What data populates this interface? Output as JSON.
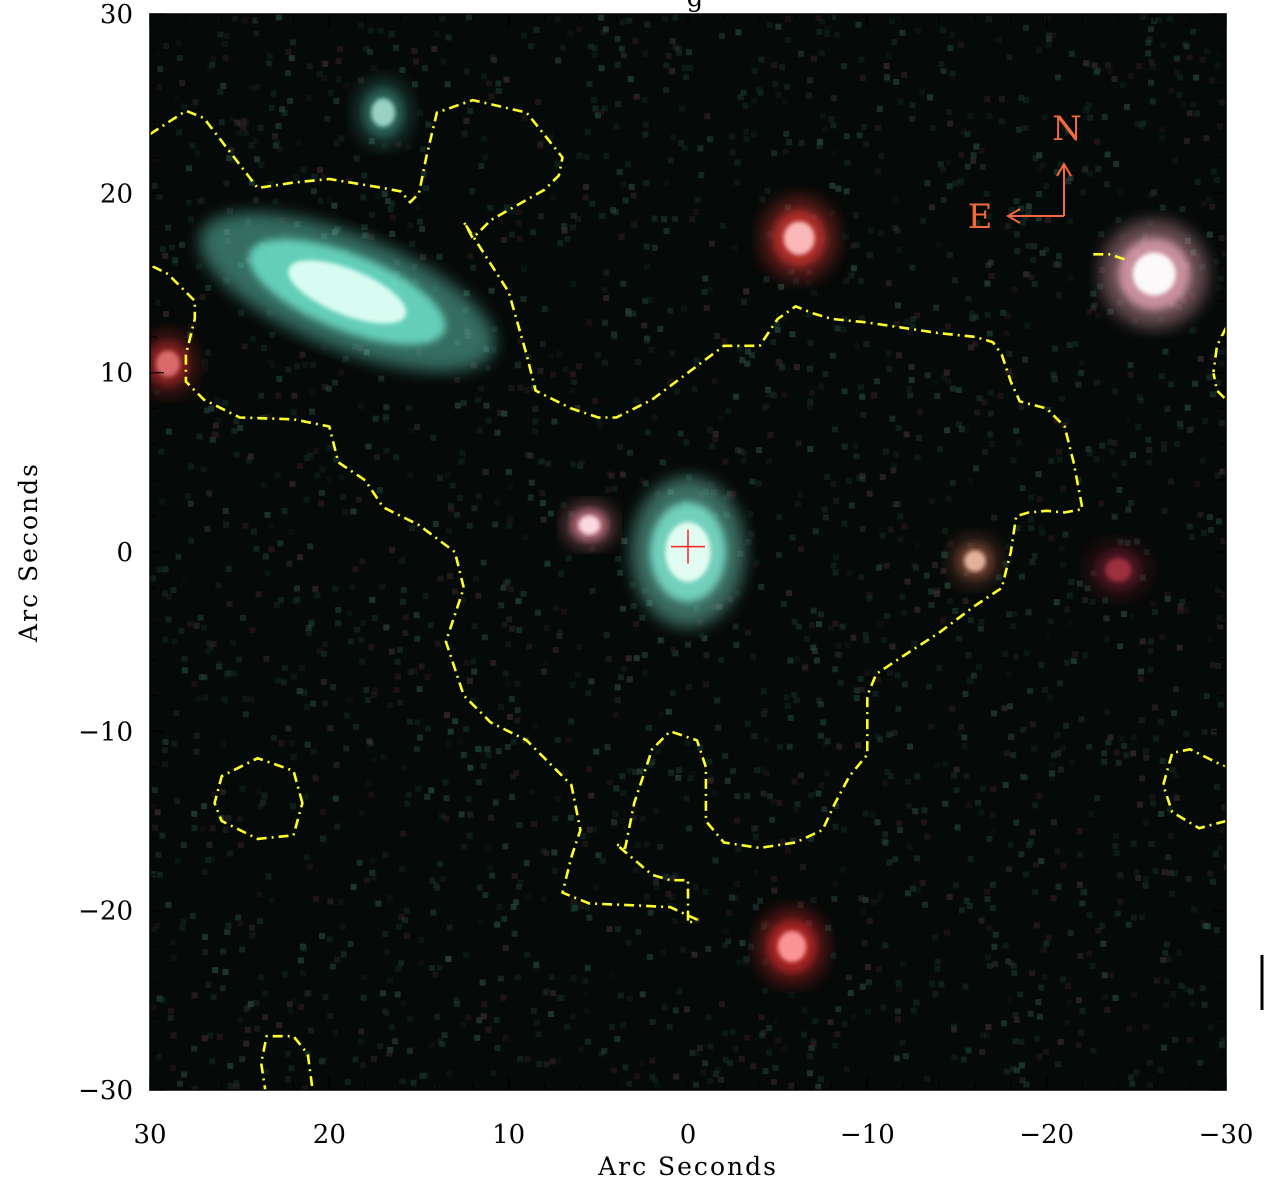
{
  "plot": {
    "x_axis_label": "Arc Seconds",
    "y_axis_label": "Arc Seconds",
    "x_range": [
      30,
      -30
    ],
    "y_range": [
      -30,
      30
    ],
    "x_ticks": [
      30,
      20,
      10,
      0,
      -10,
      -20,
      -30
    ],
    "y_ticks": [
      30,
      20,
      10,
      0,
      -10,
      -20,
      -30
    ],
    "x_tick_labels": [
      "30",
      "20",
      "10",
      "0",
      "−10",
      "−20",
      "−30"
    ],
    "y_tick_labels": [
      "30",
      "20",
      "10",
      "0",
      "−10",
      "−20",
      "−30"
    ],
    "minor_tick_step": 2,
    "title_fragment": "g"
  },
  "image": {
    "background_color": "#050907",
    "contour_color": "#ffff2a",
    "marker_color": "#ff2020",
    "sources": [
      {
        "name": "central-galaxy",
        "x": 0,
        "y": 0,
        "color": "#e8fff6",
        "glow": "#7fe8d0"
      },
      {
        "name": "large-cyan-galaxy",
        "x": 19,
        "y": 14.5,
        "color": "#dffff4",
        "glow": "#6fe7cf"
      },
      {
        "name": "pink-knot-near-center",
        "x": 5.5,
        "y": 1.5,
        "color": "#ffe0e8",
        "glow": "#c07080"
      },
      {
        "name": "red-source-north",
        "x": -6.2,
        "y": 17.5,
        "color": "#ffc0c0",
        "glow": "#c0302e"
      },
      {
        "name": "red-source-south",
        "x": -5.8,
        "y": -22,
        "color": "#ff9a9a",
        "glow": "#b82828"
      },
      {
        "name": "bright-star-northwest",
        "x": -26,
        "y": 15.5,
        "color": "#ffffff",
        "glow": "#e0a0b0"
      },
      {
        "name": "faint-orange-source",
        "x": -16,
        "y": -0.5,
        "color": "#e8b8a0",
        "glow": "#704030"
      },
      {
        "name": "red-edge-source",
        "x": 29,
        "y": 10.5,
        "color": "#e07070",
        "glow": "#902020"
      },
      {
        "name": "faint-red-source-east",
        "x": -24,
        "y": -1,
        "color": "#a03040",
        "glow": "#501820"
      },
      {
        "name": "cyan-smudge-north",
        "x": 17,
        "y": 24.5,
        "color": "#9fd8c8",
        "glow": "#2f6a5e"
      }
    ],
    "contours": [
      {
        "name": "main-contour",
        "points": [
          [
            30,
            23.3
          ],
          [
            28,
            24.6
          ],
          [
            27,
            24.2
          ],
          [
            25,
            21.6
          ],
          [
            24,
            20.3
          ],
          [
            22,
            20.6
          ],
          [
            20,
            20.8
          ],
          [
            17,
            20.3
          ],
          [
            16,
            20.1
          ],
          [
            15.5,
            19.5
          ],
          [
            15,
            20
          ],
          [
            14.6,
            22
          ],
          [
            14,
            24.5
          ],
          [
            12,
            25.2
          ],
          [
            9,
            24.5
          ],
          [
            7,
            22
          ],
          [
            7.2,
            21
          ],
          [
            8,
            20.2
          ],
          [
            11,
            18.5
          ],
          [
            12,
            17.5
          ],
          [
            12.5,
            18.4
          ],
          [
            10,
            14.5
          ],
          [
            9,
            11
          ],
          [
            8.5,
            9
          ],
          [
            7.5,
            8.5
          ],
          [
            6.5,
            8
          ],
          [
            5,
            7.5
          ],
          [
            4,
            7.5
          ],
          [
            2,
            8.5
          ],
          [
            0,
            10
          ],
          [
            -2,
            11.5
          ],
          [
            -4,
            11.5
          ],
          [
            -5,
            13
          ],
          [
            -6,
            13.7
          ],
          [
            -7,
            13.3
          ],
          [
            -8,
            13
          ],
          [
            -10,
            12.8
          ],
          [
            -12,
            12.5
          ],
          [
            -14,
            12.2
          ],
          [
            -16,
            12
          ],
          [
            -17,
            11.7
          ],
          [
            -17.5,
            11
          ],
          [
            -18,
            9.5
          ],
          [
            -18.5,
            8.4
          ],
          [
            -20,
            8
          ],
          [
            -21,
            7
          ],
          [
            -21.5,
            5
          ],
          [
            -22,
            2.4
          ],
          [
            -21,
            2.2
          ],
          [
            -20,
            2.3
          ],
          [
            -19,
            2.2
          ],
          [
            -18.3,
            2
          ],
          [
            -18,
            0
          ],
          [
            -17.5,
            -2
          ],
          [
            -16,
            -3
          ],
          [
            -14,
            -4.5
          ],
          [
            -12,
            -5.8
          ],
          [
            -10.5,
            -6.8
          ],
          [
            -10,
            -8
          ],
          [
            -10,
            -11.3
          ],
          [
            -9,
            -12.5
          ],
          [
            -8.2,
            -14
          ],
          [
            -7.5,
            -15.5
          ],
          [
            -6,
            -16.2
          ],
          [
            -4,
            -16.5
          ],
          [
            -2,
            -16.2
          ],
          [
            -1,
            -15
          ],
          [
            -1,
            -12
          ],
          [
            -0.5,
            -10.5
          ],
          [
            1,
            -10
          ],
          [
            2,
            -11
          ],
          [
            3,
            -14
          ],
          [
            3.5,
            -16.5
          ],
          [
            4,
            -16.3
          ],
          [
            2,
            -18
          ],
          [
            1,
            -18.3
          ],
          [
            0,
            -18.3
          ],
          [
            0,
            -19.5
          ],
          [
            0,
            -20.7
          ],
          [
            -0.5,
            -20.5
          ],
          [
            1,
            -19.8
          ],
          [
            3,
            -19.7
          ],
          [
            5.5,
            -19.6
          ],
          [
            7,
            -19
          ],
          [
            6.5,
            -17
          ],
          [
            6,
            -15.5
          ],
          [
            6.5,
            -13
          ],
          [
            7.5,
            -12
          ],
          [
            9,
            -10.5
          ],
          [
            11,
            -9.5
          ],
          [
            12.5,
            -8
          ],
          [
            13.5,
            -5
          ],
          [
            12.5,
            -2
          ],
          [
            13,
            0
          ],
          [
            15,
            1.5
          ],
          [
            17,
            2.5
          ],
          [
            18,
            4
          ],
          [
            19.5,
            5
          ],
          [
            20,
            7
          ],
          [
            22,
            7.4
          ],
          [
            25,
            7.5
          ],
          [
            27,
            8.5
          ],
          [
            28,
            9.5
          ],
          [
            28,
            11
          ],
          [
            27.5,
            13
          ],
          [
            27.5,
            14
          ],
          [
            29,
            15.5
          ],
          [
            30,
            16
          ]
        ],
        "closed": false
      },
      {
        "name": "left-bottom-loop",
        "points": [
          [
            21.5,
            -14
          ],
          [
            22,
            -12.2
          ],
          [
            24,
            -11.5
          ],
          [
            26,
            -12.5
          ],
          [
            26.4,
            -14
          ],
          [
            26,
            -15
          ],
          [
            24,
            -16
          ],
          [
            22,
            -15.8
          ],
          [
            21.5,
            -14
          ]
        ],
        "closed": true
      },
      {
        "name": "bottom-arc",
        "points": [
          [
            20.8,
            -31
          ],
          [
            21.2,
            -28
          ],
          [
            22,
            -27
          ],
          [
            23.5,
            -27
          ],
          [
            23.8,
            -28.5
          ],
          [
            23.5,
            -30.5
          ]
        ],
        "closed": false
      },
      {
        "name": "right-bottom-loop",
        "points": [
          [
            -30,
            -15
          ],
          [
            -28.5,
            -15.4
          ],
          [
            -27,
            -14.5
          ],
          [
            -26.5,
            -13
          ],
          [
            -27,
            -11.2
          ],
          [
            -28,
            -11
          ],
          [
            -30,
            -12
          ]
        ],
        "closed": false
      },
      {
        "name": "right-top-loop",
        "points": [
          [
            -30,
            12.5
          ],
          [
            -29.5,
            11.5
          ],
          [
            -29.3,
            10
          ],
          [
            -29.5,
            9
          ],
          [
            -30,
            8.5
          ]
        ],
        "closed": false
      },
      {
        "name": "bright-star-contour-fragment",
        "points": [
          [
            -22.6,
            16.6
          ],
          [
            -23.5,
            16.6
          ],
          [
            -23.8,
            16.5
          ],
          [
            -24.4,
            16.3
          ]
        ],
        "closed": false
      }
    ]
  },
  "compass": {
    "north_label": "N",
    "east_label": "E",
    "color": "#f26a3c"
  },
  "target_marker": {
    "x": 0,
    "y": 0.3
  }
}
